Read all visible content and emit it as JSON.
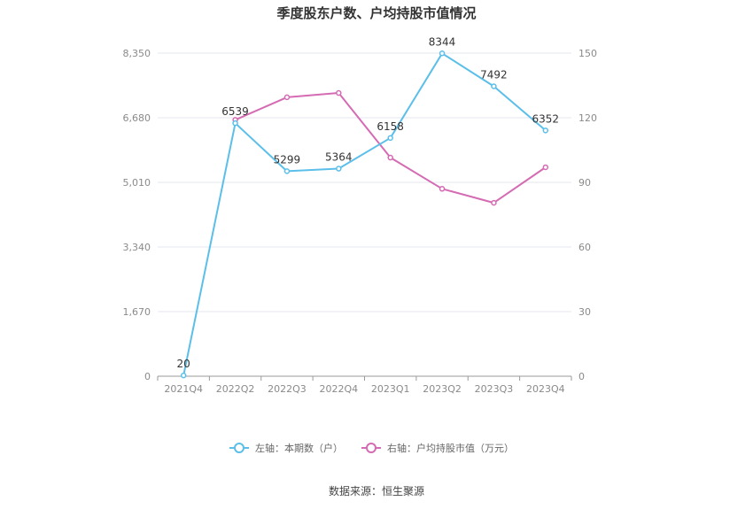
{
  "chart_data": {
    "type": "line",
    "title": "季度股东户数、户均持股市值情况",
    "categories": [
      "2021Q4",
      "2022Q2",
      "2022Q3",
      "2022Q4",
      "2023Q1",
      "2023Q2",
      "2023Q3",
      "2023Q4"
    ],
    "left_axis": {
      "ticks": [
        "0",
        "1,670",
        "3,340",
        "5,010",
        "6,680",
        "8,350"
      ],
      "ylim": [
        0,
        8350
      ]
    },
    "right_axis": {
      "ticks": [
        "0",
        "30",
        "60",
        "90",
        "120",
        "150"
      ],
      "ylim": [
        0,
        150
      ]
    },
    "series": [
      {
        "name": "左轴：本期数（户）",
        "axis": "left",
        "color": "#5bbfea",
        "values": [
          20,
          6539,
          5299,
          5364,
          6158,
          8344,
          7492,
          6352
        ],
        "labels": [
          "20",
          "6539",
          "5299",
          "5364",
          "6158",
          "8344",
          "7492",
          "6352"
        ]
      },
      {
        "name": "右轴：户均持股市值（万元）",
        "axis": "right",
        "color": "#d46bb3",
        "values": [
          null,
          119,
          129.5,
          131.5,
          101.5,
          87,
          80.5,
          97
        ]
      }
    ],
    "grid": true,
    "legend_position": "bottom-center"
  },
  "footer": {
    "source": "数据来源：恒生聚源"
  }
}
